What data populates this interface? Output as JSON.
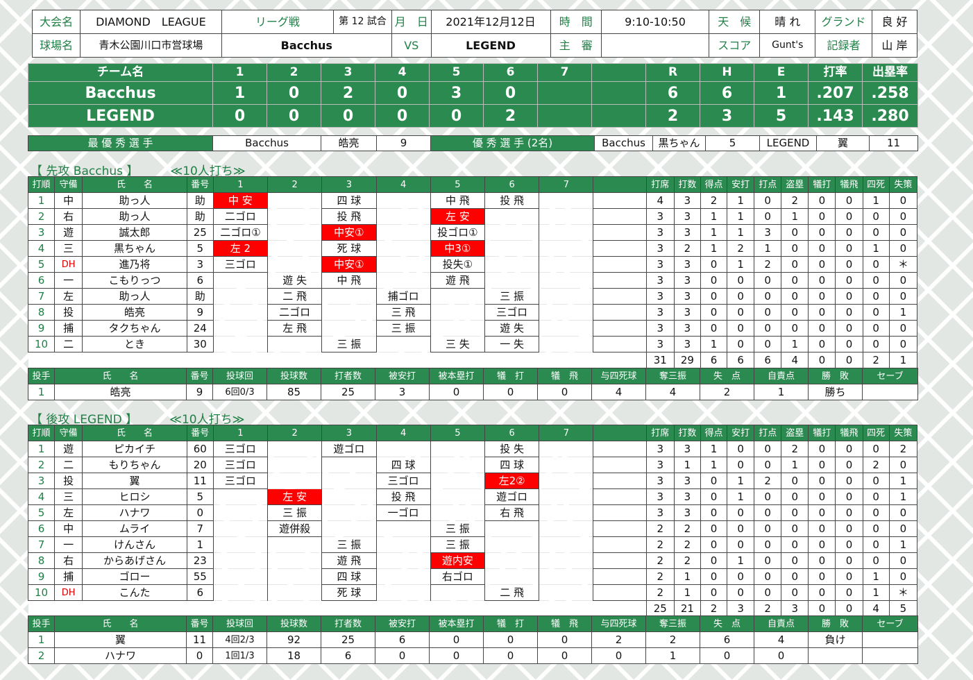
{
  "header": {
    "tournament_label": "大会名",
    "tournament": "DIAMOND　LEAGUE",
    "league_label": "リーグ戦",
    "game_no": "第 12 試合",
    "date_label": "月　日",
    "date": "2021年12月12日",
    "time_label": "時　間",
    "time": "9:10-10:50",
    "weather_label": "天　候",
    "weather": "晴 れ",
    "ground_label": "グランド",
    "ground": "良 好",
    "venue_label": "球場名",
    "venue": "青木公園川口市営球場",
    "home": "Bacchus",
    "vs": "VS",
    "away": "LEGEND",
    "umpire_label": "主　審",
    "umpire": "",
    "score_label": "スコア",
    "scorer": "Gunt's",
    "recorder_label": "記録者",
    "recorder": "山 岸"
  },
  "linescore": {
    "headers": [
      "チーム名",
      "1",
      "2",
      "3",
      "4",
      "5",
      "6",
      "7",
      "R",
      "H",
      "E",
      "打率",
      "出塁率"
    ],
    "rows": [
      {
        "team": "Bacchus",
        "innings": [
          "1",
          "0",
          "2",
          "0",
          "3",
          "0",
          ""
        ],
        "R": "6",
        "H": "6",
        "E": "1",
        "avg": ".207",
        "obp": ".258"
      },
      {
        "team": "LEGEND",
        "innings": [
          "0",
          "0",
          "0",
          "0",
          "0",
          "2",
          ""
        ],
        "R": "2",
        "H": "3",
        "E": "5",
        "avg": ".143",
        "obp": ".280"
      }
    ]
  },
  "awards": {
    "mvp_label": "最 優 秀 選 手",
    "mvp_team": "Bacchus",
    "mvp_name": "皓亮",
    "mvp_no": "9",
    "excellent_label": "優 秀 選 手 (2名)",
    "ex1_team": "Bacchus",
    "ex1_name": "黒ちゃん",
    "ex1_no": "5",
    "ex2_team": "LEGEND",
    "ex2_name": "翼",
    "ex2_no": "11"
  },
  "batting_headers": [
    "打順",
    "守備",
    "氏　　名",
    "番号",
    "1",
    "2",
    "3",
    "4",
    "5",
    "6",
    "7",
    "",
    "打席",
    "打数",
    "得点",
    "安打",
    "打点",
    "盗塁",
    "犠打",
    "犠飛",
    "四死",
    "失策"
  ],
  "pitching_headers": [
    "投手",
    "氏　　名",
    "番号",
    "投球回",
    "投球数",
    "打者数",
    "被安打",
    "被本塁打",
    "犠　打",
    "犠　飛",
    "与四死球",
    "奪三振",
    "失　点",
    "自責点",
    "勝　敗",
    "セーブ"
  ],
  "first": {
    "title": "【 先攻 Bacchus 】",
    "note": "≪10人打ち≫",
    "batters": [
      {
        "order": "1",
        "pos": "中",
        "name": "助っ人",
        "no": "助",
        "inn": [
          [
            "中 安",
            1
          ],
          [
            "",
            0
          ],
          [
            "四 球",
            0
          ],
          [
            "",
            0
          ],
          [
            "中 飛",
            0
          ],
          [
            "投 飛",
            0
          ],
          [
            "",
            0
          ]
        ],
        "stats": [
          "4",
          "3",
          "2",
          "1",
          "0",
          "2",
          "0",
          "0",
          "1",
          "0"
        ]
      },
      {
        "order": "2",
        "pos": "右",
        "name": "助っ人",
        "no": "助",
        "inn": [
          [
            "二ゴロ",
            0
          ],
          [
            "",
            0
          ],
          [
            "投 飛",
            0
          ],
          [
            "",
            0
          ],
          [
            "左 安",
            1
          ],
          [
            "",
            0
          ],
          [
            "",
            0
          ]
        ],
        "stats": [
          "3",
          "3",
          "1",
          "1",
          "0",
          "1",
          "0",
          "0",
          "0",
          "0"
        ]
      },
      {
        "order": "3",
        "pos": "遊",
        "name": "誠太郎",
        "no": "25",
        "inn": [
          [
            "二ゴロ①",
            0
          ],
          [
            "",
            0
          ],
          [
            "中安①",
            1
          ],
          [
            "",
            0
          ],
          [
            "投ゴロ①",
            0
          ],
          [
            "",
            0
          ],
          [
            "",
            0
          ]
        ],
        "stats": [
          "3",
          "3",
          "1",
          "1",
          "3",
          "0",
          "0",
          "0",
          "0",
          "0"
        ]
      },
      {
        "order": "4",
        "pos": "三",
        "name": "黒ちゃん",
        "no": "5",
        "inn": [
          [
            "左 2",
            1
          ],
          [
            "",
            0
          ],
          [
            "死 球",
            0
          ],
          [
            "",
            0
          ],
          [
            "中3①",
            1
          ],
          [
            "",
            0
          ],
          [
            "",
            0
          ]
        ],
        "stats": [
          "3",
          "2",
          "1",
          "2",
          "1",
          "0",
          "0",
          "0",
          "1",
          "0"
        ]
      },
      {
        "order": "5",
        "pos": "DH",
        "name": "進乃将",
        "no": "3",
        "inn": [
          [
            "三ゴロ",
            0
          ],
          [
            "",
            0
          ],
          [
            "中安①",
            1
          ],
          [
            "",
            0
          ],
          [
            "投失①",
            0
          ],
          [
            "",
            0
          ],
          [
            "",
            0
          ]
        ],
        "stats": [
          "3",
          "3",
          "0",
          "1",
          "2",
          "0",
          "0",
          "0",
          "0",
          "＊"
        ]
      },
      {
        "order": "6",
        "pos": "一",
        "name": "こもりっつ",
        "no": "6",
        "inn": [
          [
            "",
            0
          ],
          [
            "遊 失",
            0
          ],
          [
            "中 飛",
            0
          ],
          [
            "",
            0
          ],
          [
            "遊 飛",
            0
          ],
          [
            "",
            0
          ],
          [
            "",
            0
          ]
        ],
        "stats": [
          "3",
          "3",
          "0",
          "0",
          "0",
          "0",
          "0",
          "0",
          "0",
          "0"
        ]
      },
      {
        "order": "7",
        "pos": "左",
        "name": "助っ人",
        "no": "助",
        "inn": [
          [
            "",
            0
          ],
          [
            "二 飛",
            0
          ],
          [
            "",
            0
          ],
          [
            "捕ゴロ",
            0
          ],
          [
            "",
            0
          ],
          [
            "三 振",
            0
          ],
          [
            "",
            0
          ]
        ],
        "stats": [
          "3",
          "3",
          "0",
          "0",
          "0",
          "0",
          "0",
          "0",
          "0",
          "0"
        ]
      },
      {
        "order": "8",
        "pos": "投",
        "name": "皓亮",
        "no": "9",
        "inn": [
          [
            "",
            0
          ],
          [
            "二ゴロ",
            0
          ],
          [
            "",
            0
          ],
          [
            "三 飛",
            0
          ],
          [
            "",
            0
          ],
          [
            "三ゴロ",
            0
          ],
          [
            "",
            0
          ]
        ],
        "stats": [
          "3",
          "3",
          "0",
          "0",
          "0",
          "0",
          "0",
          "0",
          "0",
          "1"
        ]
      },
      {
        "order": "9",
        "pos": "捕",
        "name": "タクちゃん",
        "no": "24",
        "inn": [
          [
            "",
            0
          ],
          [
            "左 飛",
            0
          ],
          [
            "",
            0
          ],
          [
            "三 振",
            0
          ],
          [
            "",
            0
          ],
          [
            "遊 失",
            0
          ],
          [
            "",
            0
          ]
        ],
        "stats": [
          "3",
          "3",
          "0",
          "0",
          "0",
          "0",
          "0",
          "0",
          "0",
          "0"
        ]
      },
      {
        "order": "10",
        "pos": "二",
        "name": "とき",
        "no": "30",
        "inn": [
          [
            "",
            0
          ],
          [
            "",
            0
          ],
          [
            "三 振",
            0
          ],
          [
            "",
            0
          ],
          [
            "三 失",
            0
          ],
          [
            "一 失",
            0
          ],
          [
            "",
            0
          ]
        ],
        "stats": [
          "3",
          "3",
          "1",
          "0",
          "0",
          "1",
          "0",
          "0",
          "0",
          "0"
        ]
      }
    ],
    "totals": [
      "31",
      "29",
      "6",
      "6",
      "6",
      "4",
      "0",
      "0",
      "2",
      "1"
    ],
    "pitchers": [
      {
        "no_order": "1",
        "name": "皓亮",
        "no": "9",
        "ip": "6回0/3",
        "np": "85",
        "bf": "25",
        "h": "3",
        "hr": "0",
        "sh": "0",
        "sf": "0",
        "bb": "4",
        "so": "4",
        "r": "2",
        "er": "1",
        "wl": "勝ち",
        "sv": ""
      }
    ]
  },
  "second": {
    "title": "【 後攻 LEGEND 】",
    "note": "≪10人打ち≫",
    "batters": [
      {
        "order": "1",
        "pos": "遊",
        "name": "ピカイチ",
        "no": "60",
        "inn": [
          [
            "三ゴロ",
            0
          ],
          [
            "",
            0
          ],
          [
            "遊ゴロ",
            0
          ],
          [
            "",
            0
          ],
          [
            "",
            0
          ],
          [
            "投 失",
            0
          ],
          [
            "",
            0
          ]
        ],
        "stats": [
          "3",
          "3",
          "1",
          "0",
          "0",
          "2",
          "0",
          "0",
          "0",
          "2"
        ]
      },
      {
        "order": "2",
        "pos": "二",
        "name": "もりちゃん",
        "no": "20",
        "inn": [
          [
            "三ゴロ",
            0
          ],
          [
            "",
            0
          ],
          [
            "",
            0
          ],
          [
            "四 球",
            0
          ],
          [
            "",
            0
          ],
          [
            "四 球",
            0
          ],
          [
            "",
            0
          ]
        ],
        "stats": [
          "3",
          "1",
          "1",
          "0",
          "0",
          "1",
          "0",
          "0",
          "2",
          "0"
        ]
      },
      {
        "order": "3",
        "pos": "投",
        "name": "翼",
        "no": "11",
        "inn": [
          [
            "三ゴロ",
            0
          ],
          [
            "",
            0
          ],
          [
            "",
            0
          ],
          [
            "三ゴロ",
            0
          ],
          [
            "",
            0
          ],
          [
            "左2②",
            1
          ],
          [
            "",
            0
          ]
        ],
        "stats": [
          "3",
          "3",
          "0",
          "1",
          "2",
          "0",
          "0",
          "0",
          "0",
          "1"
        ]
      },
      {
        "order": "4",
        "pos": "三",
        "name": "ヒロシ",
        "no": "5",
        "inn": [
          [
            "",
            0
          ],
          [
            "左 安",
            1
          ],
          [
            "",
            0
          ],
          [
            "投 飛",
            0
          ],
          [
            "",
            0
          ],
          [
            "遊ゴロ",
            0
          ],
          [
            "",
            0
          ]
        ],
        "stats": [
          "3",
          "3",
          "0",
          "1",
          "0",
          "0",
          "0",
          "0",
          "0",
          "1"
        ]
      },
      {
        "order": "5",
        "pos": "左",
        "name": "ハナワ",
        "no": "0",
        "inn": [
          [
            "",
            0
          ],
          [
            "三 振",
            0
          ],
          [
            "",
            0
          ],
          [
            "一ゴロ",
            0
          ],
          [
            "",
            0
          ],
          [
            "右 飛",
            0
          ],
          [
            "",
            0
          ]
        ],
        "stats": [
          "3",
          "3",
          "0",
          "0",
          "0",
          "0",
          "0",
          "0",
          "0",
          "0"
        ]
      },
      {
        "order": "6",
        "pos": "中",
        "name": "ムライ",
        "no": "7",
        "inn": [
          [
            "",
            0
          ],
          [
            "遊併殺",
            0
          ],
          [
            "",
            0
          ],
          [
            "",
            0
          ],
          [
            "三 振",
            0
          ],
          [
            "",
            0
          ],
          [
            "",
            0
          ]
        ],
        "stats": [
          "2",
          "2",
          "0",
          "0",
          "0",
          "0",
          "0",
          "0",
          "0",
          "0"
        ]
      },
      {
        "order": "7",
        "pos": "一",
        "name": "けんさん",
        "no": "1",
        "inn": [
          [
            "",
            0
          ],
          [
            "",
            0
          ],
          [
            "三 振",
            0
          ],
          [
            "",
            0
          ],
          [
            "三 振",
            0
          ],
          [
            "",
            0
          ],
          [
            "",
            0
          ]
        ],
        "stats": [
          "2",
          "2",
          "0",
          "0",
          "0",
          "0",
          "0",
          "0",
          "0",
          "1"
        ]
      },
      {
        "order": "8",
        "pos": "右",
        "name": "からあげさん",
        "no": "23",
        "inn": [
          [
            "",
            0
          ],
          [
            "",
            0
          ],
          [
            "遊 飛",
            0
          ],
          [
            "",
            0
          ],
          [
            "遊内安",
            1
          ],
          [
            "",
            0
          ],
          [
            "",
            0
          ]
        ],
        "stats": [
          "2",
          "2",
          "0",
          "1",
          "0",
          "0",
          "0",
          "0",
          "0",
          "0"
        ]
      },
      {
        "order": "9",
        "pos": "捕",
        "name": "ゴロー",
        "no": "55",
        "inn": [
          [
            "",
            0
          ],
          [
            "",
            0
          ],
          [
            "四 球",
            0
          ],
          [
            "",
            0
          ],
          [
            "右ゴロ",
            0
          ],
          [
            "",
            0
          ],
          [
            "",
            0
          ]
        ],
        "stats": [
          "2",
          "1",
          "0",
          "0",
          "0",
          "0",
          "0",
          "0",
          "1",
          "0"
        ]
      },
      {
        "order": "10",
        "pos": "DH",
        "name": "こんた",
        "no": "6",
        "inn": [
          [
            "",
            0
          ],
          [
            "",
            0
          ],
          [
            "死 球",
            0
          ],
          [
            "",
            0
          ],
          [
            "",
            0
          ],
          [
            "二 飛",
            0
          ],
          [
            "",
            0
          ]
        ],
        "stats": [
          "2",
          "1",
          "0",
          "0",
          "0",
          "0",
          "0",
          "0",
          "1",
          "＊"
        ]
      }
    ],
    "totals": [
      "25",
      "21",
      "2",
      "3",
      "2",
      "3",
      "0",
      "0",
      "4",
      "5"
    ],
    "pitchers": [
      {
        "no_order": "1",
        "name": "翼",
        "no": "11",
        "ip": "4回2/3",
        "np": "92",
        "bf": "25",
        "h": "6",
        "hr": "0",
        "sh": "0",
        "sf": "0",
        "bb": "2",
        "so": "2",
        "r": "6",
        "er": "4",
        "wl": "負け",
        "sv": ""
      },
      {
        "no_order": "2",
        "name": "ハナワ",
        "no": "0",
        "ip": "1回1/3",
        "np": "18",
        "bf": "6",
        "h": "0",
        "hr": "0",
        "sh": "0",
        "sf": "0",
        "bb": "0",
        "so": "1",
        "r": "0",
        "er": "0",
        "wl": "",
        "sv": ""
      }
    ]
  }
}
